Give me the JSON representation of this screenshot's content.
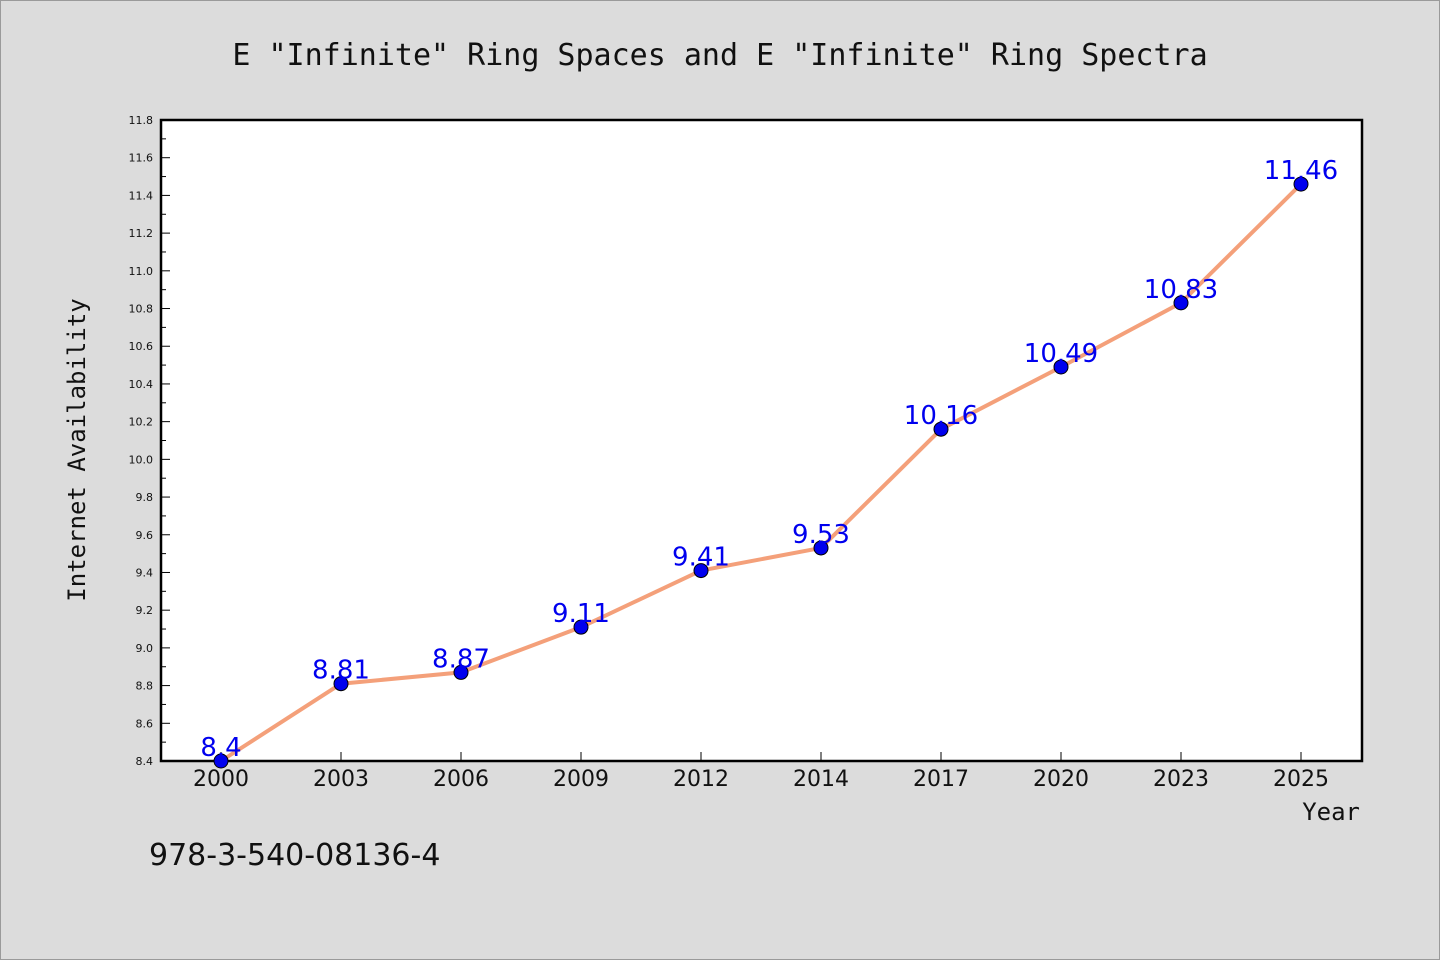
{
  "chart_data": {
    "type": "line",
    "title": "E \"Infinite\" Ring Spaces and E \"Infinite\" Ring Spectra",
    "xlabel": "Year",
    "ylabel": "Internet Availability",
    "categories": [
      "2000",
      "2003",
      "2006",
      "2009",
      "2012",
      "2014",
      "2017",
      "2020",
      "2023",
      "2025"
    ],
    "series": [
      {
        "values": [
          8.4,
          8.81,
          8.87,
          9.11,
          9.41,
          9.53,
          10.16,
          10.49,
          10.83,
          11.46
        ],
        "labels": [
          "8.4",
          "8.81",
          "8.87",
          "9.11",
          "9.41",
          "9.53",
          "10.16",
          "10.49",
          "10.83",
          "11.46"
        ],
        "line_color": "#f4a07a",
        "marker_color": "#0000ee",
        "label_color": "#0000ee"
      }
    ],
    "ylim": [
      8.4,
      11.8
    ],
    "yticks": [
      "8.4",
      "8.6",
      "8.8",
      "9.0",
      "9.2",
      "9.4",
      "9.6",
      "9.8",
      "10.0",
      "10.2",
      "10.4",
      "10.6",
      "10.8",
      "11.0",
      "11.2",
      "11.4",
      "11.6",
      "11.8"
    ],
    "grid": false,
    "legend": "none"
  },
  "annotation": {
    "isbn": "978-3-540-08136-4"
  },
  "colors": {
    "background": "#dcdcdc",
    "plot_area": "#ffffff",
    "axis": "#000000"
  }
}
